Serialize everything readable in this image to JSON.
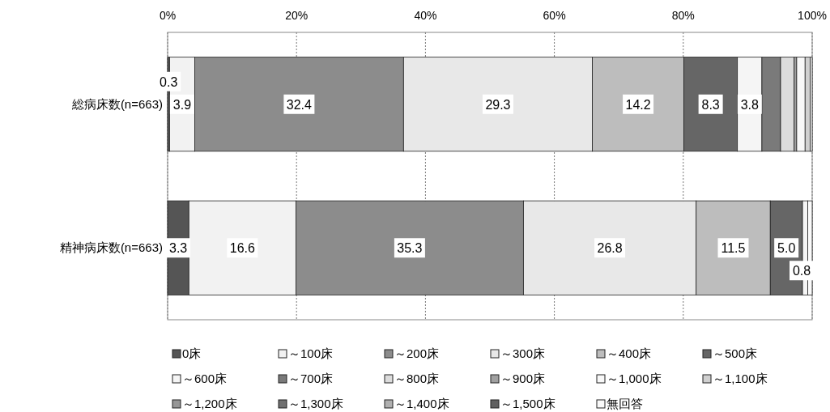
{
  "chart_data": {
    "type": "bar",
    "orientation": "horizontal",
    "stacked": true,
    "grid": "x",
    "legend": "bottom",
    "categories": [
      "総病床数(n=663)",
      "精神病床数(n=663)"
    ],
    "xlim": [
      0,
      100
    ],
    "xticks": [
      {
        "value": 0,
        "label": "0%"
      },
      {
        "value": 20,
        "label": "20%"
      },
      {
        "value": 40,
        "label": "40%"
      },
      {
        "value": 60,
        "label": "60%"
      },
      {
        "value": 80,
        "label": "80%"
      },
      {
        "value": 100,
        "label": "100%"
      }
    ],
    "series": [
      {
        "name": "0床",
        "color": "#555555",
        "values": [
          0.3,
          3.3
        ],
        "value_labels": [
          "0.3",
          "3.3"
        ]
      },
      {
        "name": "～100床",
        "color": "#f2f2f2",
        "values": [
          3.9,
          16.6
        ],
        "value_labels": [
          "3.9",
          "16.6"
        ]
      },
      {
        "name": "～200床",
        "color": "#8c8c8c",
        "values": [
          32.4,
          35.3
        ],
        "value_labels": [
          "32.4",
          "35.3"
        ]
      },
      {
        "name": "～300床",
        "color": "#e8e8e8",
        "values": [
          29.3,
          26.8
        ],
        "value_labels": [
          "29.3",
          "26.8"
        ]
      },
      {
        "name": "～400床",
        "color": "#bdbdbd",
        "values": [
          14.2,
          11.5
        ],
        "value_labels": [
          "14.2",
          "11.5"
        ]
      },
      {
        "name": "～500床",
        "color": "#666666",
        "values": [
          8.3,
          5.0
        ],
        "value_labels": [
          "8.3",
          "5.0"
        ]
      },
      {
        "name": "～600床",
        "color": "#f5f5f5",
        "values": [
          3.8,
          0.8
        ],
        "value_labels": [
          "3.8",
          "0.8"
        ]
      },
      {
        "name": "～700床",
        "color": "#7a7a7a",
        "values": [
          2.9,
          0
        ],
        "value_labels": [
          null,
          null
        ]
      },
      {
        "name": "～800床",
        "color": "#dcdcdc",
        "values": [
          2.1,
          0
        ],
        "value_labels": [
          null,
          null
        ]
      },
      {
        "name": "～900床",
        "color": "#a0a0a0",
        "values": [
          0.4,
          0
        ],
        "value_labels": [
          null,
          null
        ]
      },
      {
        "name": "～1,000床",
        "color": "#f8f8f8",
        "values": [
          1.3,
          0
        ],
        "value_labels": [
          null,
          null
        ]
      },
      {
        "name": "～1,100床",
        "color": "#d0d0d0",
        "values": [
          0.8,
          0
        ],
        "value_labels": [
          null,
          null
        ]
      },
      {
        "name": "～1,200床",
        "color": "#969696",
        "values": [
          0,
          0
        ],
        "value_labels": [
          null,
          null
        ]
      },
      {
        "name": "～1,300床",
        "color": "#707070",
        "values": [
          0,
          0
        ],
        "value_labels": [
          null,
          null
        ]
      },
      {
        "name": "～1,400床",
        "color": "#b0b0b0",
        "values": [
          0,
          0
        ],
        "value_labels": [
          null,
          null
        ]
      },
      {
        "name": "～1,500床",
        "color": "#606060",
        "values": [
          0,
          0
        ],
        "value_labels": [
          null,
          null
        ]
      },
      {
        "name": "無回答",
        "color": "#fafafa",
        "values": [
          0.3,
          0.7
        ],
        "value_labels": [
          null,
          null
        ]
      }
    ]
  }
}
